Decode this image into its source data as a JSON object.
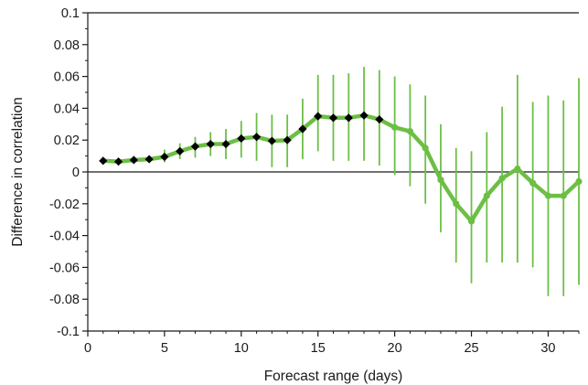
{
  "chart_data": {
    "type": "line",
    "xlabel": "Forecast range (days)",
    "ylabel": "Difference in correlation",
    "xlim": [
      0,
      32
    ],
    "ylim": [
      -0.1,
      0.1
    ],
    "x_ticks": [
      0,
      5,
      10,
      15,
      20,
      25,
      30
    ],
    "x_tick_labels": [
      "0",
      "5",
      "10",
      "15",
      "20",
      "25",
      "30"
    ],
    "y_ticks": [
      -0.1,
      -0.08,
      -0.06,
      -0.04,
      -0.02,
      0,
      0.02,
      0.04,
      0.06,
      0.08,
      0.1
    ],
    "y_tick_labels": [
      "-0.1",
      "-0.08",
      "-0.06",
      "-0.04",
      "-0.02",
      "0",
      "0.02",
      "0.04",
      "0.06",
      "0.08",
      "0.1"
    ],
    "zero_line": true,
    "grid": false,
    "colors": {
      "line": "#6cbf45",
      "error_bar": "#6cbf45",
      "significant_marker": "#000000",
      "axis": "#1a1a1a"
    },
    "series": [
      {
        "x": [
          1,
          2,
          3,
          4,
          5,
          6,
          7,
          8,
          9,
          10,
          11,
          12,
          13,
          14,
          15,
          16,
          17,
          18,
          19,
          20,
          21,
          22,
          23,
          24,
          25,
          26,
          27,
          28,
          29,
          30,
          31,
          32
        ],
        "y": [
          0.007,
          0.0065,
          0.0075,
          0.008,
          0.0095,
          0.013,
          0.016,
          0.0175,
          0.0175,
          0.021,
          0.022,
          0.0195,
          0.02,
          0.027,
          0.035,
          0.034,
          0.034,
          0.0355,
          0.033,
          0.028,
          0.0255,
          0.015,
          -0.005,
          -0.02,
          -0.031,
          -0.015,
          -0.004,
          0.002,
          -0.007,
          -0.015,
          -0.015,
          -0.006
        ],
        "y_low": [
          0.006,
          0.005,
          0.006,
          0.006,
          0.006,
          0.008,
          0.009,
          0.01,
          0.008,
          0.009,
          0.007,
          0.003,
          0.003,
          0.008,
          0.013,
          0.007,
          0.007,
          0.007,
          0.004,
          -0.002,
          -0.009,
          -0.02,
          -0.038,
          -0.057,
          -0.07,
          -0.057,
          -0.057,
          -0.057,
          -0.06,
          -0.078,
          -0.078,
          -0.071
        ],
        "y_high": [
          0.008,
          0.008,
          0.009,
          0.01,
          0.014,
          0.018,
          0.022,
          0.025,
          0.027,
          0.032,
          0.037,
          0.036,
          0.036,
          0.046,
          0.061,
          0.061,
          0.062,
          0.066,
          0.064,
          0.06,
          0.055,
          0.048,
          0.03,
          0.015,
          0.013,
          0.025,
          0.041,
          0.061,
          0.044,
          0.048,
          0.045,
          0.059
        ],
        "significant": [
          true,
          true,
          true,
          true,
          true,
          true,
          true,
          true,
          true,
          true,
          true,
          true,
          true,
          true,
          true,
          true,
          true,
          true,
          true,
          false,
          false,
          false,
          false,
          false,
          false,
          false,
          false,
          false,
          false,
          false,
          false,
          false
        ]
      }
    ]
  }
}
